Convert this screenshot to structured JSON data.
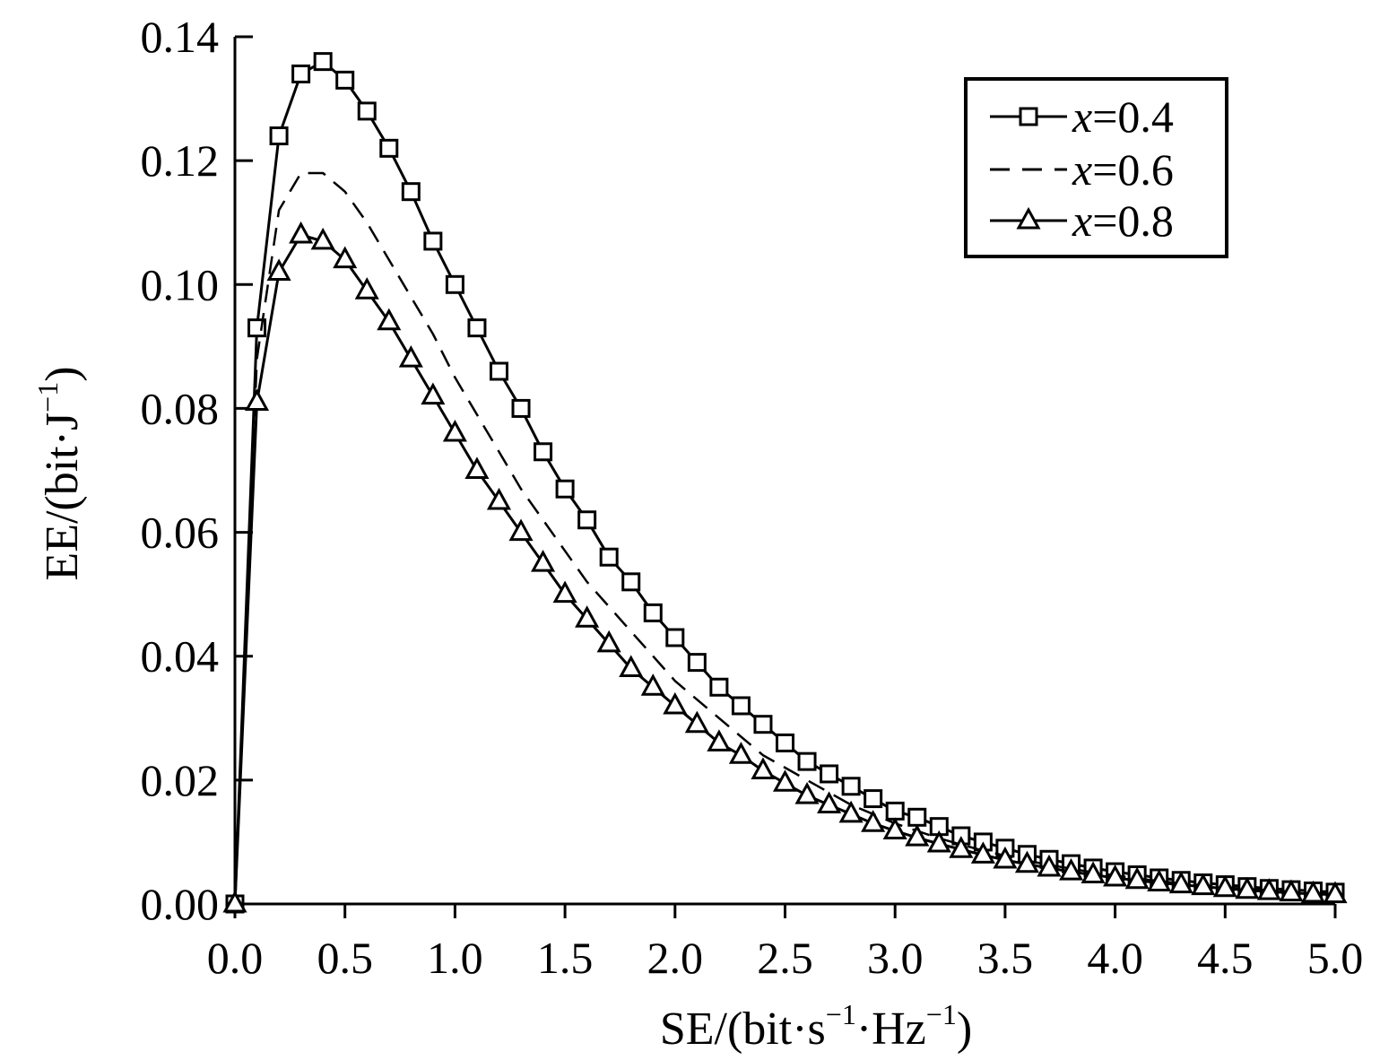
{
  "chart_data": {
    "type": "line",
    "xlabel": {
      "base": "SE/(bit·s",
      "sup1": "−1",
      "mid": "·Hz",
      "sup2": "−1",
      "end": ")"
    },
    "ylabel": {
      "base": "EE/(bit·J",
      "sup": "−1",
      "end": ")"
    },
    "xlim": [
      0,
      5
    ],
    "ylim": [
      0,
      0.14
    ],
    "xticks": [
      "0.0",
      "0.5",
      "1.0",
      "1.5",
      "2.0",
      "2.5",
      "3.0",
      "3.5",
      "4.0",
      "4.5",
      "5.0"
    ],
    "yticks": [
      "0.00",
      "0.02",
      "0.04",
      "0.06",
      "0.08",
      "0.10",
      "0.12",
      "0.14"
    ],
    "grid": false,
    "legend_position": "top-right",
    "x": [
      0.0,
      0.1,
      0.2,
      0.3,
      0.4,
      0.5,
      0.6,
      0.7,
      0.8,
      0.9,
      1.0,
      1.1,
      1.2,
      1.3,
      1.4,
      1.5,
      1.6,
      1.7,
      1.8,
      1.9,
      2.0,
      2.1,
      2.2,
      2.3,
      2.4,
      2.5,
      2.6,
      2.7,
      2.8,
      2.9,
      3.0,
      3.1,
      3.2,
      3.3,
      3.4,
      3.5,
      3.6,
      3.7,
      3.8,
      3.9,
      4.0,
      4.1,
      4.2,
      4.3,
      4.4,
      4.5,
      4.6,
      4.7,
      4.8,
      4.9,
      5.0
    ],
    "series": [
      {
        "name": "x=0.4",
        "var": "x",
        "val": "=0.4",
        "marker": "square",
        "dash": "solid",
        "values": [
          0.0,
          0.093,
          0.124,
          0.134,
          0.136,
          0.133,
          0.128,
          0.122,
          0.115,
          0.107,
          0.1,
          0.093,
          0.086,
          0.08,
          0.073,
          0.067,
          0.062,
          0.056,
          0.052,
          0.047,
          0.043,
          0.039,
          0.035,
          0.032,
          0.029,
          0.026,
          0.023,
          0.021,
          0.019,
          0.017,
          0.015,
          0.014,
          0.0125,
          0.011,
          0.01,
          0.009,
          0.008,
          0.0072,
          0.0065,
          0.0058,
          0.0052,
          0.0047,
          0.0042,
          0.0038,
          0.0034,
          0.0031,
          0.0028,
          0.0025,
          0.0023,
          0.0021,
          0.0019
        ]
      },
      {
        "name": "x=0.6",
        "var": "x",
        "val": "=0.6",
        "marker": "none",
        "dash": "dashed",
        "values": [
          0.0,
          0.088,
          0.112,
          0.118,
          0.118,
          0.115,
          0.11,
          0.104,
          0.098,
          0.092,
          0.085,
          0.079,
          0.073,
          0.067,
          0.062,
          0.057,
          0.052,
          0.048,
          0.044,
          0.04,
          0.036,
          0.033,
          0.03,
          0.027,
          0.024,
          0.022,
          0.02,
          0.018,
          0.016,
          0.0145,
          0.013,
          0.0118,
          0.0106,
          0.0096,
          0.0086,
          0.0078,
          0.007,
          0.0063,
          0.0057,
          0.0051,
          0.0046,
          0.0041,
          0.0037,
          0.0033,
          0.003,
          0.0027,
          0.0024,
          0.0022,
          0.002,
          0.0018,
          0.0016
        ]
      },
      {
        "name": "x=0.8",
        "var": "x",
        "val": "=0.8",
        "marker": "triangle",
        "dash": "solid",
        "values": [
          0.0,
          0.081,
          0.102,
          0.108,
          0.107,
          0.104,
          0.099,
          0.094,
          0.088,
          0.082,
          0.076,
          0.07,
          0.065,
          0.06,
          0.055,
          0.05,
          0.046,
          0.042,
          0.038,
          0.035,
          0.032,
          0.029,
          0.026,
          0.024,
          0.0215,
          0.0195,
          0.0175,
          0.016,
          0.0145,
          0.013,
          0.0118,
          0.0107,
          0.0097,
          0.0088,
          0.0079,
          0.0071,
          0.0064,
          0.0058,
          0.0052,
          0.0047,
          0.0042,
          0.0038,
          0.0034,
          0.0031,
          0.0028,
          0.0025,
          0.0022,
          0.002,
          0.0018,
          0.0016,
          0.0015
        ]
      }
    ]
  }
}
